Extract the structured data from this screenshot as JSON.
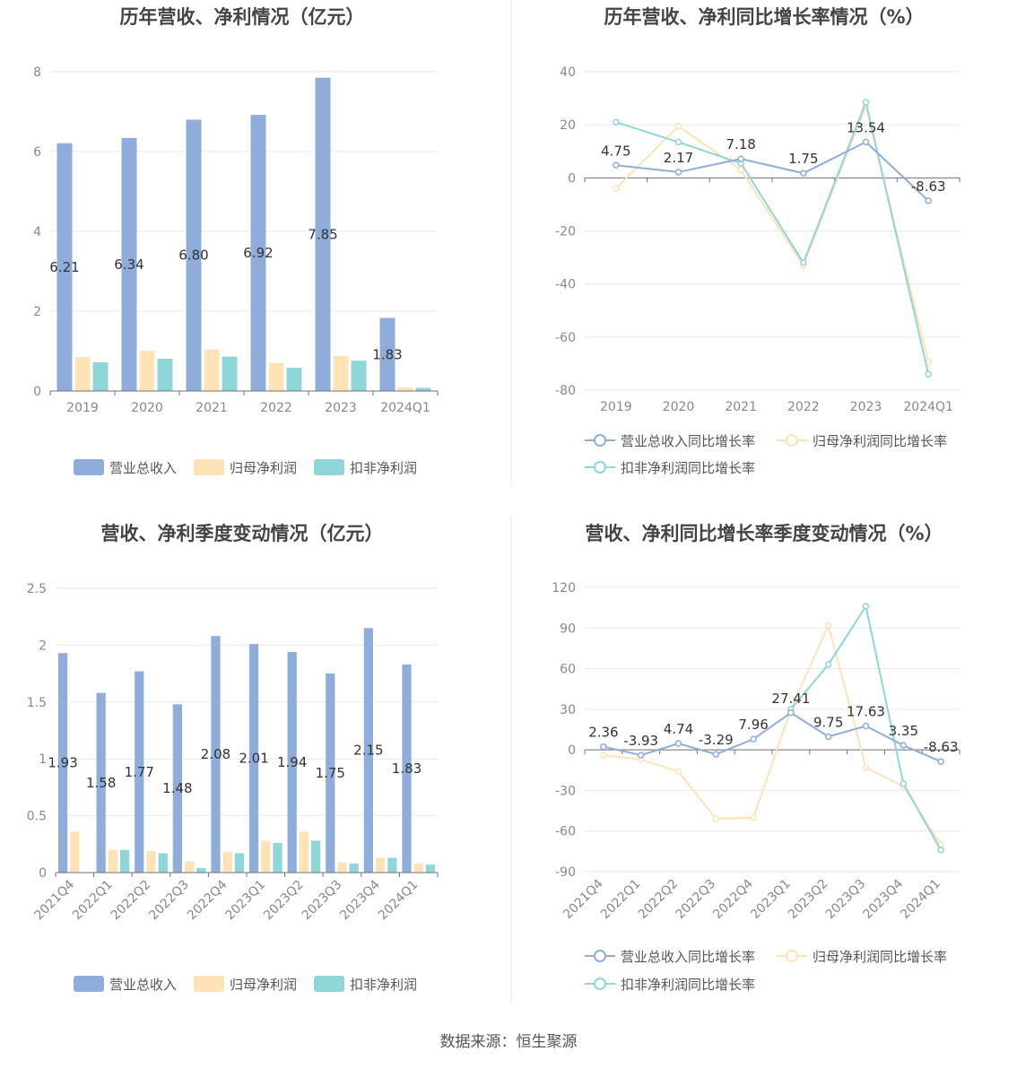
{
  "footer": {
    "source": "数据来源：恒生聚源"
  },
  "legends": {
    "bar": [
      "营业总收入",
      "归母净利润",
      "扣非净利润"
    ],
    "line": [
      "营业总收入同比增长率",
      "归母净利润同比增长率",
      "扣非净利润同比增长率"
    ]
  },
  "colors": {
    "revenue": "#8eadda",
    "net_profit": "#fde3b6",
    "deducted": "#8ed6d8"
  },
  "chart_data": [
    {
      "type": "bar",
      "title": "历年营收、净利情况（亿元）",
      "categories": [
        "2019",
        "2020",
        "2021",
        "2022",
        "2023",
        "2024Q1"
      ],
      "series": [
        {
          "name": "营业总收入",
          "values": [
            6.21,
            6.34,
            6.8,
            6.92,
            7.85,
            1.83
          ],
          "labels": [
            "6.21",
            "6.34",
            "6.80",
            "6.92",
            "7.85",
            "1.83"
          ]
        },
        {
          "name": "归母净利润",
          "values": [
            0.85,
            1.01,
            1.04,
            0.7,
            0.88,
            0.09
          ]
        },
        {
          "name": "扣非净利润",
          "values": [
            0.72,
            0.81,
            0.86,
            0.58,
            0.76,
            0.08
          ]
        }
      ],
      "yticks": [
        0,
        2,
        4,
        6,
        8
      ],
      "ylim": [
        0,
        8
      ],
      "grid": true,
      "legend": "bottom"
    },
    {
      "type": "line",
      "title": "历年营收、净利同比增长率情况（%）",
      "categories": [
        "2019",
        "2020",
        "2021",
        "2022",
        "2023",
        "2024Q1"
      ],
      "series": [
        {
          "name": "营业总收入同比增长率",
          "values": [
            4.75,
            2.17,
            7.18,
            1.75,
            13.54,
            -8.63
          ],
          "labels": [
            "4.75",
            "2.17",
            "7.18",
            "1.75",
            "13.54",
            "-8.63"
          ]
        },
        {
          "name": "归母净利润同比增长率",
          "values": [
            -4.0,
            19.5,
            3.0,
            -33.0,
            27.0,
            -69.5
          ]
        },
        {
          "name": "扣非净利润同比增长率",
          "values": [
            21.0,
            13.5,
            5.5,
            -32.0,
            28.5,
            -74.0
          ]
        }
      ],
      "yticks": [
        40,
        20,
        0,
        -20,
        -40,
        -60,
        -80
      ],
      "ylim": [
        -80,
        40
      ],
      "grid": true,
      "legend": "bottom"
    },
    {
      "type": "bar",
      "title": "营收、净利季度变动情况（亿元）",
      "categories": [
        "2021Q4",
        "2022Q1",
        "2022Q2",
        "2022Q3",
        "2022Q4",
        "2023Q1",
        "2023Q2",
        "2023Q3",
        "2023Q4",
        "2024Q1"
      ],
      "series": [
        {
          "name": "营业总收入",
          "values": [
            1.93,
            1.58,
            1.77,
            1.48,
            2.08,
            2.01,
            1.94,
            1.75,
            2.15,
            1.83
          ],
          "labels": [
            "1.93",
            "1.58",
            "1.77",
            "1.48",
            "2.08",
            "2.01",
            "1.94",
            "1.75",
            "2.15",
            "1.83"
          ]
        },
        {
          "name": "归母净利润",
          "values": [
            0.36,
            0.2,
            0.19,
            0.1,
            0.18,
            0.28,
            0.36,
            0.09,
            0.13,
            0.08
          ]
        },
        {
          "name": "扣非净利润",
          "values": [
            0.0,
            0.2,
            0.17,
            0.04,
            0.17,
            0.26,
            0.28,
            0.08,
            0.13,
            0.07
          ]
        }
      ],
      "yticks": [
        0,
        0.5,
        1,
        1.5,
        2,
        2.5
      ],
      "ylim": [
        0,
        2.5
      ],
      "grid": true,
      "legend": "bottom"
    },
    {
      "type": "line",
      "title": "营收、净利同比增长率季度变动情况（%）",
      "categories": [
        "2021Q4",
        "2022Q1",
        "2022Q2",
        "2022Q3",
        "2022Q4",
        "2023Q1",
        "2023Q2",
        "2023Q3",
        "2023Q4",
        "2024Q1"
      ],
      "series": [
        {
          "name": "营业总收入同比增长率",
          "values": [
            2.36,
            -3.93,
            4.74,
            -3.29,
            7.96,
            27.41,
            9.75,
            17.63,
            3.35,
            -8.63
          ],
          "labels": [
            "2.36",
            "-3.93",
            "4.74",
            "-3.29",
            "7.96",
            "27.41",
            "9.75",
            "17.63",
            "3.35",
            "-8.63"
          ]
        },
        {
          "name": "归母净利润同比增长率",
          "values": [
            -4.0,
            -7.0,
            -16.0,
            -51.0,
            -50.0,
            30.0,
            92.0,
            -13.0,
            -27.0,
            -70.0
          ]
        },
        {
          "name": "扣非净利润同比增长率",
          "values": [
            null,
            null,
            null,
            null,
            null,
            30.0,
            63.0,
            106.0,
            -25.0,
            -74.0
          ]
        }
      ],
      "yticks": [
        120,
        90,
        60,
        30,
        0,
        -30,
        -60,
        -90
      ],
      "ylim": [
        -90,
        120
      ],
      "grid": true,
      "legend": "bottom"
    }
  ]
}
